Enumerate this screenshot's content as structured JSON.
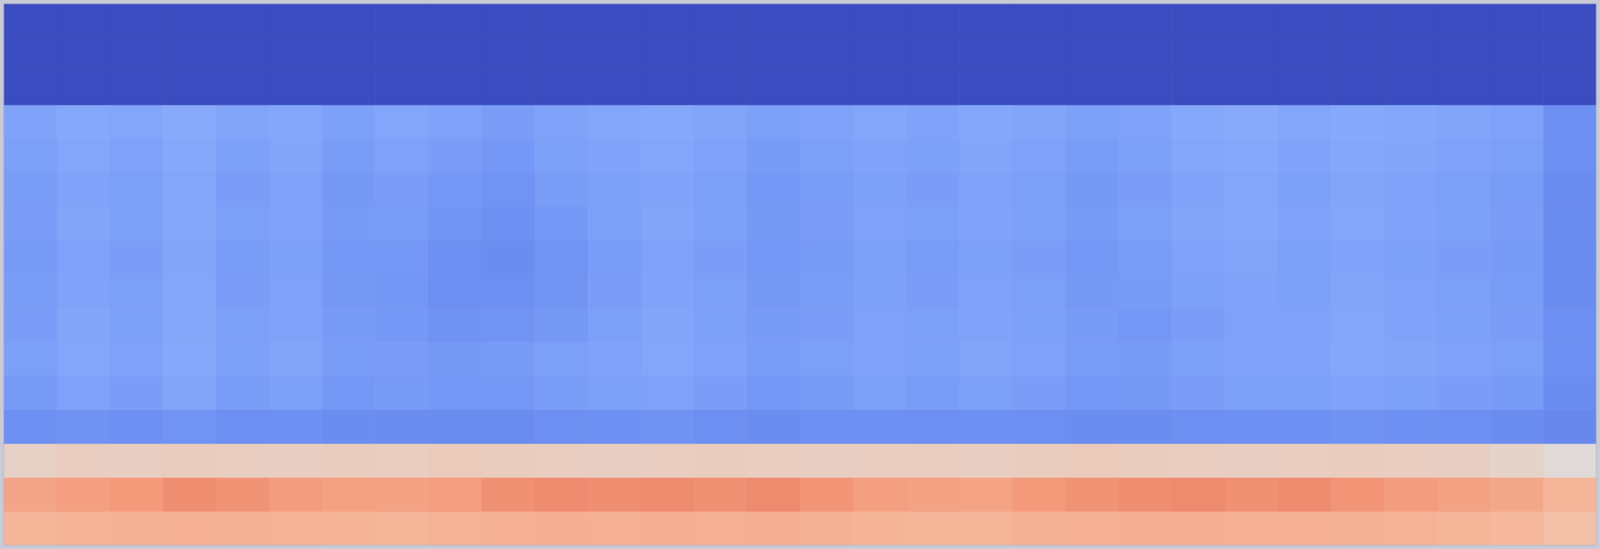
{
  "chart_data": {
    "type": "heatmap",
    "tick_labels": false,
    "color_range": [
      -1,
      1
    ],
    "values": [
      [
        -1,
        -1,
        -1,
        -1,
        -1,
        -1,
        -1,
        -1,
        -1,
        -1,
        -1,
        -1,
        -1,
        -1,
        -1,
        -1,
        -1,
        -1,
        -1,
        -1,
        -1,
        -1,
        -1,
        -1,
        -1,
        -1,
        -1,
        -1,
        -1,
        -1
      ],
      [
        -1,
        -1,
        -1,
        -1,
        -1,
        -1,
        -1,
        -1,
        -1,
        -1,
        -1,
        -1,
        -1,
        -1,
        -1,
        -1,
        -1,
        -1,
        -1,
        -1,
        -1,
        -1,
        -1,
        -1,
        -1,
        -1,
        -1,
        -1,
        -1,
        -1
      ],
      [
        -1,
        -1,
        -1,
        -1,
        -1,
        -1,
        -1,
        -1,
        -1,
        -1,
        -1,
        -1,
        -1,
        -1,
        -1,
        -1,
        -1,
        -1,
        -1,
        -1,
        -1,
        -1,
        -1,
        -1,
        -1,
        -1,
        -1,
        -1,
        -1,
        -1
      ],
      [
        -0.42,
        -0.38,
        -0.4,
        -0.36,
        -0.41,
        -0.39,
        -0.44,
        -0.4,
        -0.43,
        -0.46,
        -0.42,
        -0.4,
        -0.38,
        -0.41,
        -0.45,
        -0.43,
        -0.4,
        -0.42,
        -0.39,
        -0.41,
        -0.44,
        -0.42,
        -0.38,
        -0.36,
        -0.4,
        -0.37,
        -0.39,
        -0.41,
        -0.43,
        -0.55
      ],
      [
        -0.45,
        -0.4,
        -0.43,
        -0.38,
        -0.44,
        -0.41,
        -0.47,
        -0.43,
        -0.46,
        -0.5,
        -0.44,
        -0.42,
        -0.4,
        -0.43,
        -0.48,
        -0.45,
        -0.42,
        -0.44,
        -0.41,
        -0.43,
        -0.47,
        -0.44,
        -0.4,
        -0.38,
        -0.42,
        -0.39,
        -0.41,
        -0.43,
        -0.45,
        -0.56
      ],
      [
        -0.47,
        -0.42,
        -0.45,
        -0.4,
        -0.46,
        -0.43,
        -0.49,
        -0.46,
        -0.5,
        -0.53,
        -0.47,
        -0.44,
        -0.42,
        -0.45,
        -0.5,
        -0.47,
        -0.44,
        -0.46,
        -0.43,
        -0.45,
        -0.49,
        -0.46,
        -0.42,
        -0.4,
        -0.44,
        -0.41,
        -0.43,
        -0.45,
        -0.47,
        -0.57
      ],
      [
        -0.46,
        -0.41,
        -0.44,
        -0.39,
        -0.45,
        -0.42,
        -0.48,
        -0.47,
        -0.52,
        -0.55,
        -0.5,
        -0.45,
        -0.41,
        -0.44,
        -0.49,
        -0.46,
        -0.43,
        -0.45,
        -0.42,
        -0.44,
        -0.48,
        -0.45,
        -0.41,
        -0.39,
        -0.43,
        -0.4,
        -0.42,
        -0.44,
        -0.46,
        -0.57
      ],
      [
        -0.48,
        -0.43,
        -0.46,
        -0.41,
        -0.47,
        -0.44,
        -0.5,
        -0.5,
        -0.55,
        -0.57,
        -0.53,
        -0.47,
        -0.43,
        -0.46,
        -0.5,
        -0.48,
        -0.45,
        -0.47,
        -0.44,
        -0.46,
        -0.5,
        -0.47,
        -0.43,
        -0.41,
        -0.45,
        -0.42,
        -0.44,
        -0.46,
        -0.48,
        -0.58
      ],
      [
        -0.47,
        -0.42,
        -0.45,
        -0.4,
        -0.46,
        -0.43,
        -0.49,
        -0.51,
        -0.56,
        -0.56,
        -0.52,
        -0.46,
        -0.42,
        -0.45,
        -0.49,
        -0.47,
        -0.44,
        -0.46,
        -0.43,
        -0.45,
        -0.49,
        -0.48,
        -0.44,
        -0.42,
        -0.44,
        -0.41,
        -0.43,
        -0.45,
        -0.47,
        -0.57
      ],
      [
        -0.46,
        -0.41,
        -0.44,
        -0.39,
        -0.45,
        -0.42,
        -0.48,
        -0.5,
        -0.54,
        -0.53,
        -0.49,
        -0.45,
        -0.41,
        -0.44,
        -0.48,
        -0.46,
        -0.43,
        -0.45,
        -0.42,
        -0.44,
        -0.48,
        -0.5,
        -0.46,
        -0.43,
        -0.43,
        -0.4,
        -0.42,
        -0.44,
        -0.46,
        -0.56
      ],
      [
        -0.45,
        -0.4,
        -0.43,
        -0.38,
        -0.44,
        -0.41,
        -0.47,
        -0.46,
        -0.49,
        -0.48,
        -0.45,
        -0.43,
        -0.4,
        -0.43,
        -0.47,
        -0.45,
        -0.42,
        -0.44,
        -0.41,
        -0.43,
        -0.47,
        -0.48,
        -0.45,
        -0.42,
        -0.42,
        -0.39,
        -0.41,
        -0.43,
        -0.45,
        -0.55
      ],
      [
        -0.48,
        -0.43,
        -0.46,
        -0.41,
        -0.47,
        -0.44,
        -0.5,
        -0.48,
        -0.5,
        -0.5,
        -0.47,
        -0.45,
        -0.43,
        -0.46,
        -0.5,
        -0.48,
        -0.45,
        -0.47,
        -0.44,
        -0.46,
        -0.5,
        -0.49,
        -0.46,
        -0.44,
        -0.45,
        -0.42,
        -0.44,
        -0.46,
        -0.48,
        -0.57
      ],
      [
        -0.56,
        -0.54,
        -0.55,
        -0.53,
        -0.56,
        -0.55,
        -0.57,
        -0.57,
        -0.58,
        -0.58,
        -0.56,
        -0.55,
        -0.54,
        -0.56,
        -0.57,
        -0.56,
        -0.55,
        -0.56,
        -0.55,
        -0.56,
        -0.57,
        -0.57,
        -0.56,
        -0.55,
        -0.55,
        -0.54,
        -0.55,
        -0.56,
        -0.57,
        -0.6
      ],
      [
        0.1,
        0.12,
        0.11,
        0.13,
        0.12,
        0.11,
        0.13,
        0.12,
        0.14,
        0.13,
        0.12,
        0.11,
        0.12,
        0.13,
        0.12,
        0.11,
        0.12,
        0.12,
        0.11,
        0.13,
        0.14,
        0.13,
        0.12,
        0.11,
        0.12,
        0.13,
        0.12,
        0.11,
        0.08,
        0.02
      ],
      [
        0.42,
        0.46,
        0.5,
        0.55,
        0.53,
        0.48,
        0.45,
        0.44,
        0.47,
        0.54,
        0.56,
        0.55,
        0.56,
        0.54,
        0.57,
        0.52,
        0.46,
        0.44,
        0.43,
        0.5,
        0.53,
        0.55,
        0.57,
        0.54,
        0.56,
        0.52,
        0.48,
        0.44,
        0.4,
        0.3
      ],
      [
        0.3,
        0.32,
        0.33,
        0.34,
        0.33,
        0.32,
        0.31,
        0.3,
        0.32,
        0.34,
        0.35,
        0.34,
        0.35,
        0.34,
        0.35,
        0.33,
        0.31,
        0.3,
        0.3,
        0.33,
        0.34,
        0.35,
        0.35,
        0.34,
        0.34,
        0.33,
        0.32,
        0.3,
        0.28,
        0.22
      ]
    ]
  }
}
